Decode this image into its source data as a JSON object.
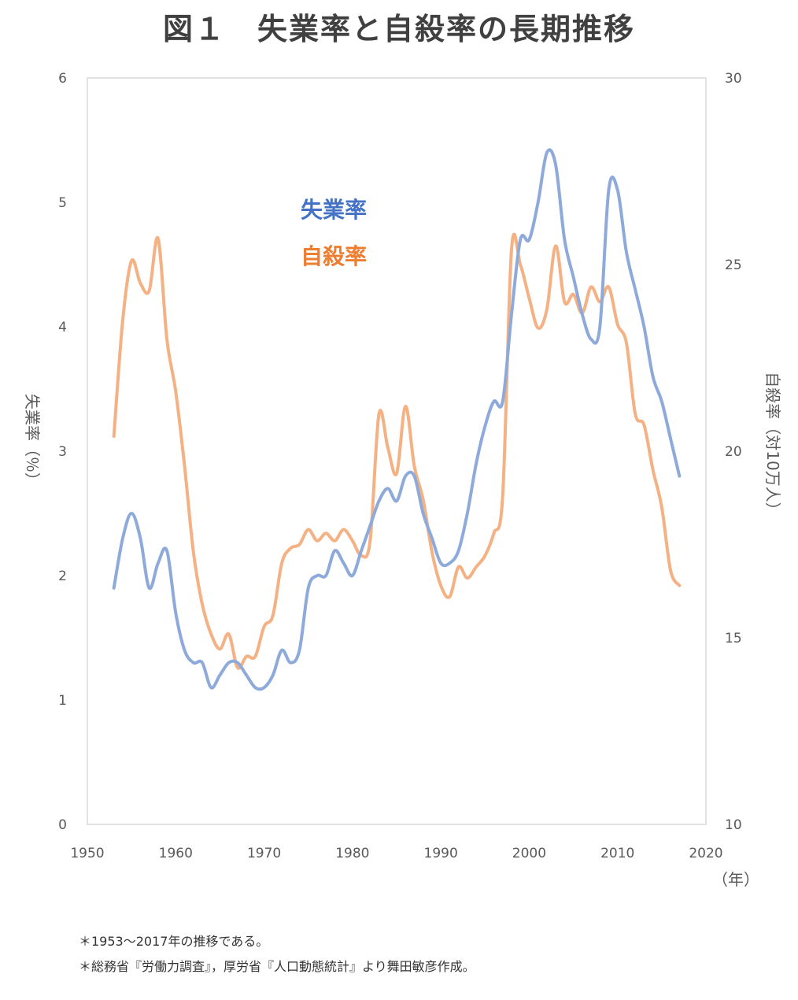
{
  "title": "図１　失業率と自殺率の長期推移",
  "legend": {
    "unemployment": "失業率",
    "suicide": "自殺率"
  },
  "axes": {
    "x_unit": "（年）",
    "y_left_label": "失業率（％）",
    "y_right_label": "自殺率（対10万人）"
  },
  "notes": [
    "＊1953～2017年の推移である。",
    "＊総務省『労働力調査』，厚労省『人口動態統計』より舞田敏彦作成。"
  ],
  "colors": {
    "unemployment": "#8eaadb",
    "suicide": "#f4b183",
    "axis": "#d9d9d9"
  },
  "chart_data": {
    "type": "line",
    "title": "図１　失業率と自殺率の長期推移",
    "xlabel": "（年）",
    "xlim": [
      1950,
      2020
    ],
    "x_ticks": [
      1950,
      1960,
      1970,
      1980,
      1990,
      2000,
      2010,
      2020
    ],
    "y_left": {
      "label": "失業率（％）",
      "ylim": [
        0,
        6
      ],
      "ticks": [
        0,
        1,
        2,
        3,
        4,
        5,
        6
      ]
    },
    "y_right": {
      "label": "自殺率（対10万人）",
      "ylim": [
        10,
        30
      ],
      "ticks": [
        10,
        15,
        20,
        25,
        30
      ]
    },
    "grid": false,
    "legend_position": "top-left inside plot",
    "series": [
      {
        "name": "失業率",
        "axis": "left",
        "x": [
          1953,
          1954,
          1955,
          1956,
          1957,
          1958,
          1959,
          1960,
          1961,
          1962,
          1963,
          1964,
          1965,
          1966,
          1967,
          1968,
          1969,
          1970,
          1971,
          1972,
          1973,
          1974,
          1975,
          1976,
          1977,
          1978,
          1979,
          1980,
          1981,
          1982,
          1983,
          1984,
          1985,
          1986,
          1987,
          1988,
          1989,
          1990,
          1991,
          1992,
          1993,
          1994,
          1995,
          1996,
          1997,
          1998,
          1999,
          2000,
          2001,
          2002,
          2003,
          2004,
          2005,
          2006,
          2007,
          2008,
          2009,
          2010,
          2011,
          2012,
          2013,
          2014,
          2015,
          2016,
          2017
        ],
        "values": [
          1.9,
          2.3,
          2.5,
          2.3,
          1.9,
          2.1,
          2.2,
          1.7,
          1.4,
          1.3,
          1.3,
          1.1,
          1.2,
          1.3,
          1.3,
          1.2,
          1.1,
          1.1,
          1.2,
          1.4,
          1.3,
          1.4,
          1.9,
          2.0,
          2.0,
          2.2,
          2.1,
          2.0,
          2.2,
          2.4,
          2.6,
          2.7,
          2.6,
          2.8,
          2.8,
          2.5,
          2.3,
          2.1,
          2.1,
          2.2,
          2.5,
          2.9,
          3.2,
          3.4,
          3.4,
          4.1,
          4.7,
          4.7,
          5.0,
          5.4,
          5.3,
          4.7,
          4.4,
          4.1,
          3.9,
          4.0,
          5.1,
          5.1,
          4.6,
          4.3,
          4.0,
          3.6,
          3.4,
          3.1,
          2.8
        ]
      },
      {
        "name": "自殺率",
        "axis": "right",
        "x": [
          1953,
          1954,
          1955,
          1956,
          1957,
          1958,
          1959,
          1960,
          1961,
          1962,
          1963,
          1964,
          1965,
          1966,
          1967,
          1968,
          1969,
          1970,
          1971,
          1972,
          1973,
          1974,
          1975,
          1976,
          1977,
          1978,
          1979,
          1980,
          1981,
          1982,
          1983,
          1984,
          1985,
          1986,
          1987,
          1988,
          1989,
          1990,
          1991,
          1992,
          1993,
          1994,
          1995,
          1996,
          1997,
          1998,
          1999,
          2000,
          2001,
          2002,
          2003,
          2004,
          2005,
          2006,
          2007,
          2008,
          2009,
          2010,
          2011,
          2012,
          2013,
          2014,
          2015,
          2016,
          2017
        ],
        "values": [
          20.4,
          23.5,
          25.1,
          24.5,
          24.3,
          25.7,
          23.0,
          21.6,
          19.6,
          17.3,
          15.9,
          15.1,
          14.7,
          15.1,
          14.2,
          14.5,
          14.5,
          15.3,
          15.6,
          17.0,
          17.4,
          17.5,
          17.9,
          17.6,
          17.8,
          17.6,
          17.9,
          17.6,
          17.2,
          17.6,
          21.0,
          20.1,
          19.4,
          21.2,
          19.6,
          18.7,
          17.3,
          16.4,
          16.1,
          16.9,
          16.6,
          16.9,
          17.2,
          17.8,
          18.8,
          25.4,
          25.0,
          24.1,
          23.3,
          23.8,
          25.5,
          24.0,
          24.2,
          23.7,
          24.4,
          24.0,
          24.4,
          23.4,
          22.9,
          21.0,
          20.7,
          19.5,
          18.5,
          16.8,
          16.4
        ]
      }
    ]
  }
}
